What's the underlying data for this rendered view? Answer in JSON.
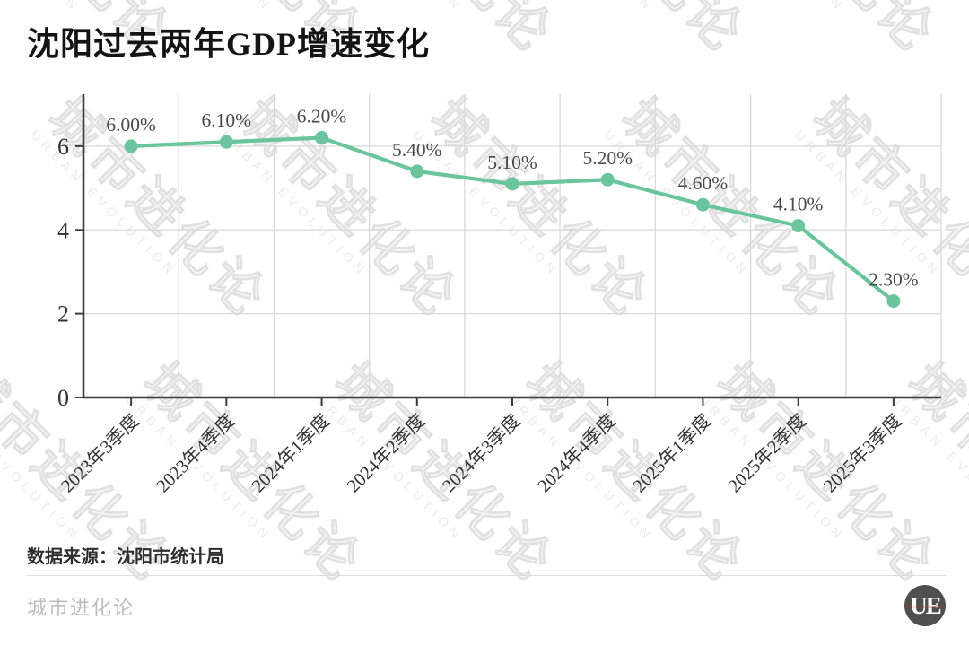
{
  "title": "沈阳过去两年GDP增速变化",
  "watermark": {
    "cn": "城市进化论",
    "en": "URBAN EVOLUTION"
  },
  "chart_data": {
    "type": "line",
    "title": "沈阳过去两年GDP增速变化",
    "categories": [
      "2023年3季度",
      "2023年4季度",
      "2024年1季度",
      "2024年2季度",
      "2024年3季度",
      "2024年4季度",
      "2025年1季度",
      "2025年2季度",
      "2025年3季度"
    ],
    "values": [
      6.0,
      6.1,
      6.2,
      5.4,
      5.1,
      5.2,
      4.6,
      4.1,
      2.3
    ],
    "point_labels": [
      "6.00%",
      "6.10%",
      "6.20%",
      "5.40%",
      "5.10%",
      "5.20%",
      "4.60%",
      "4.10%",
      "2.30%"
    ],
    "xlabel": "",
    "ylabel": "",
    "yticks": [
      0,
      2,
      4,
      6
    ],
    "ylim": [
      0,
      7.24
    ],
    "grid": true,
    "legend": "none",
    "line_color": "#6ac49c"
  },
  "source": {
    "label": "数据来源：沈阳市统计局"
  },
  "footer": {
    "brand": "城市进化论",
    "logo_text": "UE",
    "logo_sub": "URBAN EVOLUTION"
  },
  "colors": {
    "accent_green": "#6ac49c",
    "axis": "#3d3d3d",
    "grid": "#d9d9d9",
    "tick_label": "#333333",
    "data_label": "#4a4a4a",
    "brand_gray": "#bdbdbd",
    "logo_bg": "#4f4f4f",
    "logo_red": "#b03a2e"
  }
}
